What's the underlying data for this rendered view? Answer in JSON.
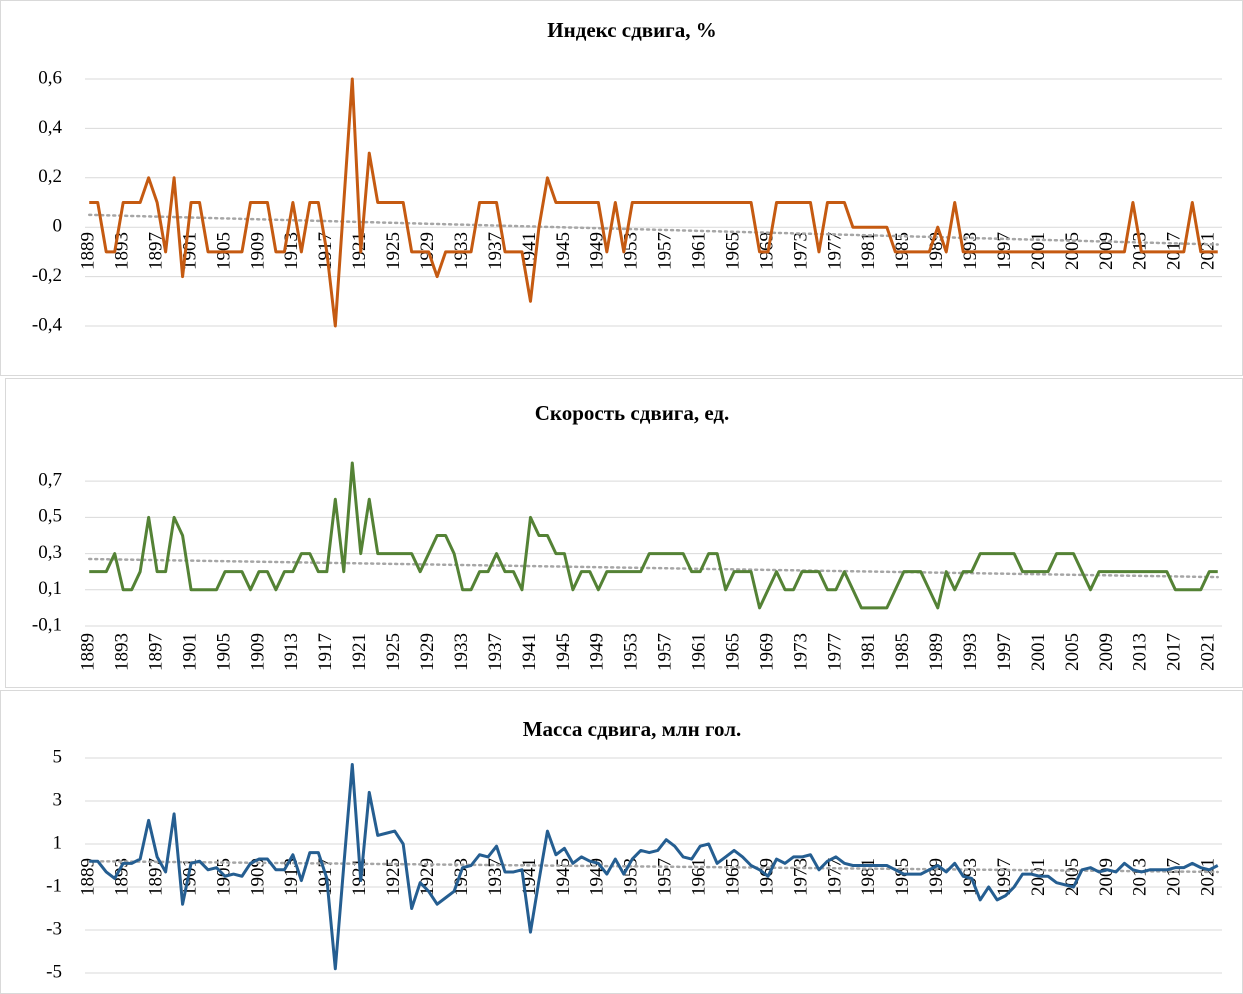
{
  "chart_data": [
    {
      "type": "line",
      "title": "Индекс сдвига, %",
      "color": "#c55a11",
      "x": [
        1889,
        1890,
        1891,
        1892,
        1893,
        1894,
        1895,
        1896,
        1897,
        1898,
        1899,
        1900,
        1901,
        1902,
        1903,
        1904,
        1905,
        1906,
        1907,
        1908,
        1909,
        1910,
        1911,
        1912,
        1913,
        1914,
        1915,
        1916,
        1917,
        1918,
        1919,
        1920,
        1921,
        1922,
        1923,
        1924,
        1925,
        1926,
        1927,
        1928,
        1929,
        1930,
        1931,
        1932,
        1933,
        1934,
        1935,
        1936,
        1937,
        1938,
        1939,
        1940,
        1941,
        1942,
        1943,
        1944,
        1945,
        1946,
        1947,
        1948,
        1949,
        1950,
        1951,
        1952,
        1953,
        1954,
        1955,
        1956,
        1957,
        1958,
        1959,
        1960,
        1961,
        1962,
        1963,
        1964,
        1965,
        1966,
        1967,
        1968,
        1969,
        1970,
        1971,
        1972,
        1973,
        1974,
        1975,
        1976,
        1977,
        1978,
        1979,
        1980,
        1981,
        1982,
        1983,
        1984,
        1985,
        1986,
        1987,
        1988,
        1989,
        1990,
        1991,
        1992,
        1993,
        1994,
        1995,
        1996,
        1997,
        1998,
        1999,
        2000,
        2001,
        2002,
        2003,
        2004,
        2005,
        2006,
        2007,
        2008,
        2009,
        2010,
        2011,
        2012,
        2013,
        2014,
        2015,
        2016,
        2017,
        2018,
        2019,
        2020,
        2021,
        2022
      ],
      "values": [
        0.1,
        0.1,
        -0.1,
        -0.1,
        0.1,
        0.1,
        0.1,
        0.2,
        0.1,
        -0.1,
        0.2,
        -0.2,
        0.1,
        0.1,
        -0.1,
        -0.1,
        -0.1,
        -0.1,
        -0.1,
        0.1,
        0.1,
        0.1,
        -0.1,
        -0.1,
        0.1,
        -0.1,
        0.1,
        0.1,
        -0.1,
        -0.4,
        0.1,
        0.6,
        -0.1,
        0.3,
        0.1,
        0.1,
        0.1,
        0.1,
        -0.1,
        -0.1,
        -0.1,
        -0.2,
        -0.1,
        -0.1,
        -0.1,
        -0.1,
        0.1,
        0.1,
        0.1,
        -0.1,
        -0.1,
        -0.1,
        -0.3,
        0,
        0.2,
        0.1,
        0.1,
        0.1,
        0.1,
        0.1,
        0.1,
        -0.1,
        0.1,
        -0.1,
        0.1,
        0.1,
        0.1,
        0.1,
        0.1,
        0.1,
        0.1,
        0.1,
        0.1,
        0.1,
        0.1,
        0.1,
        0.1,
        0.1,
        0.1,
        -0.1,
        -0.1,
        0.1,
        0.1,
        0.1,
        0.1,
        0.1,
        -0.1,
        0.1,
        0.1,
        0.1,
        0,
        0,
        0,
        0,
        0,
        -0.1,
        -0.1,
        -0.1,
        -0.1,
        -0.1,
        0,
        -0.1,
        0.1,
        -0.1,
        -0.1,
        -0.1,
        -0.1,
        -0.1,
        -0.1,
        -0.1,
        -0.1,
        -0.1,
        -0.1,
        -0.1,
        -0.1,
        -0.1,
        -0.1,
        -0.1,
        -0.1,
        -0.1,
        -0.1,
        -0.1,
        -0.1,
        0.1,
        -0.1,
        -0.1,
        -0.1,
        -0.1,
        -0.1,
        -0.1,
        0.1,
        -0.1,
        -0.1,
        -0.1
      ],
      "trend": {
        "color": "#a6a6a6",
        "values": [
          0.05,
          -0.07
        ]
      },
      "xlim": [
        1888.5,
        2022.5
      ],
      "xticks": [
        1889,
        1893,
        1897,
        1901,
        1905,
        1909,
        1913,
        1917,
        1921,
        1925,
        1929,
        1933,
        1937,
        1941,
        1945,
        1949,
        1953,
        1957,
        1961,
        1965,
        1969,
        1973,
        1977,
        1981,
        1985,
        1989,
        1993,
        1997,
        2001,
        2005,
        2009,
        2013,
        2017,
        2021
      ],
      "ylim": [
        -0.4,
        0.6
      ],
      "yticks": [
        {
          "value": -0.4,
          "label": "-0,4"
        },
        {
          "value": -0.2,
          "label": "-0,2"
        },
        0,
        {
          "value": 0.2,
          "label": "0,2"
        },
        {
          "value": 0.4,
          "label": "0,4"
        },
        {
          "value": 0.6,
          "label": "0,6"
        }
      ],
      "grid": true
    },
    {
      "type": "line",
      "title": "Скорость сдвига, ед.",
      "color": "#548235",
      "x": [
        1889,
        1890,
        1891,
        1892,
        1893,
        1894,
        1895,
        1896,
        1897,
        1898,
        1899,
        1900,
        1901,
        1902,
        1903,
        1904,
        1905,
        1906,
        1907,
        1908,
        1909,
        1910,
        1911,
        1912,
        1913,
        1914,
        1915,
        1916,
        1917,
        1918,
        1919,
        1920,
        1921,
        1922,
        1923,
        1924,
        1925,
        1926,
        1927,
        1928,
        1929,
        1930,
        1931,
        1932,
        1933,
        1934,
        1935,
        1936,
        1937,
        1938,
        1939,
        1940,
        1941,
        1942,
        1943,
        1944,
        1945,
        1946,
        1947,
        1948,
        1949,
        1950,
        1951,
        1952,
        1953,
        1954,
        1955,
        1956,
        1957,
        1958,
        1959,
        1960,
        1961,
        1962,
        1963,
        1964,
        1965,
        1966,
        1967,
        1968,
        1969,
        1970,
        1971,
        1972,
        1973,
        1974,
        1975,
        1976,
        1977,
        1978,
        1979,
        1980,
        1981,
        1982,
        1983,
        1984,
        1985,
        1986,
        1987,
        1988,
        1989,
        1990,
        1991,
        1992,
        1993,
        1994,
        1995,
        1996,
        1997,
        1998,
        1999,
        2000,
        2001,
        2002,
        2003,
        2004,
        2005,
        2006,
        2007,
        2008,
        2009,
        2010,
        2011,
        2012,
        2013,
        2014,
        2015,
        2016,
        2017,
        2018,
        2019,
        2020,
        2021,
        2022
      ],
      "values": [
        0.2,
        0.2,
        0.2,
        0.3,
        0.1,
        0.1,
        0.2,
        0.5,
        0.2,
        0.2,
        0.5,
        0.4,
        0.1,
        0.1,
        0.1,
        0.1,
        0.2,
        0.2,
        0.2,
        0.1,
        0.2,
        0.2,
        0.1,
        0.2,
        0.2,
        0.3,
        0.3,
        0.2,
        0.2,
        0.6,
        0.2,
        0.8,
        0.3,
        0.6,
        0.3,
        0.3,
        0.3,
        0.3,
        0.3,
        0.2,
        0.3,
        0.4,
        0.4,
        0.3,
        0.1,
        0.1,
        0.2,
        0.2,
        0.3,
        0.2,
        0.2,
        0.1,
        0.5,
        0.4,
        0.4,
        0.3,
        0.3,
        0.1,
        0.2,
        0.2,
        0.1,
        0.2,
        0.2,
        0.2,
        0.2,
        0.2,
        0.3,
        0.3,
        0.3,
        0.3,
        0.3,
        0.2,
        0.2,
        0.3,
        0.3,
        0.1,
        0.2,
        0.2,
        0.2,
        0,
        0.1,
        0.2,
        0.1,
        0.1,
        0.2,
        0.2,
        0.2,
        0.1,
        0.1,
        0.2,
        0.1,
        0,
        0,
        0,
        0,
        0.1,
        0.2,
        0.2,
        0.2,
        0.1,
        0,
        0.2,
        0.1,
        0.2,
        0.2,
        0.3,
        0.3,
        0.3,
        0.3,
        0.3,
        0.2,
        0.2,
        0.2,
        0.2,
        0.3,
        0.3,
        0.3,
        0.2,
        0.1,
        0.2,
        0.2,
        0.2,
        0.2,
        0.2,
        0.2,
        0.2,
        0.2,
        0.2,
        0.1,
        0.1,
        0.1,
        0.1,
        0.2,
        0.2
      ],
      "trend": {
        "color": "#a6a6a6",
        "values": [
          0.27,
          0.17
        ]
      },
      "xlim": [
        1888.5,
        2022.5
      ],
      "xticks": [
        1889,
        1893,
        1897,
        1901,
        1905,
        1909,
        1913,
        1917,
        1921,
        1925,
        1929,
        1933,
        1937,
        1941,
        1945,
        1949,
        1953,
        1957,
        1961,
        1965,
        1969,
        1973,
        1977,
        1981,
        1985,
        1989,
        1993,
        1997,
        2001,
        2005,
        2009,
        2013,
        2017,
        2021
      ],
      "ylim": [
        -0.1,
        0.85
      ],
      "yticks": [
        {
          "value": -0.1,
          "label": "-0,1"
        },
        {
          "value": 0.1,
          "label": "0,1"
        },
        {
          "value": 0.3,
          "label": "0,3"
        },
        {
          "value": 0.5,
          "label": "0,5"
        },
        {
          "value": 0.7,
          "label": "0,7"
        }
      ],
      "grid": true
    },
    {
      "type": "line",
      "title": "Масса сдвига, млн гол.",
      "color": "#255e91",
      "x": [
        1889,
        1890,
        1891,
        1892,
        1893,
        1894,
        1895,
        1896,
        1897,
        1898,
        1899,
        1900,
        1901,
        1902,
        1903,
        1904,
        1905,
        1906,
        1907,
        1908,
        1909,
        1910,
        1911,
        1912,
        1913,
        1914,
        1915,
        1916,
        1917,
        1918,
        1919,
        1920,
        1921,
        1922,
        1923,
        1924,
        1925,
        1926,
        1927,
        1928,
        1929,
        1930,
        1931,
        1932,
        1933,
        1934,
        1935,
        1936,
        1937,
        1938,
        1939,
        1940,
        1941,
        1942,
        1943,
        1944,
        1945,
        1946,
        1947,
        1948,
        1949,
        1950,
        1951,
        1952,
        1953,
        1954,
        1955,
        1956,
        1957,
        1958,
        1959,
        1960,
        1961,
        1962,
        1963,
        1964,
        1965,
        1966,
        1967,
        1968,
        1969,
        1970,
        1971,
        1972,
        1973,
        1974,
        1975,
        1976,
        1977,
        1978,
        1979,
        1980,
        1981,
        1982,
        1983,
        1984,
        1985,
        1986,
        1987,
        1988,
        1989,
        1990,
        1991,
        1992,
        1993,
        1994,
        1995,
        1996,
        1997,
        1998,
        1999,
        2000,
        2001,
        2002,
        2003,
        2004,
        2005,
        2006,
        2007,
        2008,
        2009,
        2010,
        2011,
        2012,
        2013,
        2014,
        2015,
        2016,
        2017,
        2018,
        2019,
        2020,
        2021,
        2022
      ],
      "values": [
        0.2,
        0.2,
        -0.3,
        -0.6,
        0.1,
        0.1,
        0.3,
        2.1,
        0.4,
        -0.3,
        2.4,
        -1.8,
        0.1,
        0.2,
        -0.2,
        -0.1,
        -0.5,
        -0.4,
        -0.5,
        0.1,
        0.3,
        0.3,
        -0.2,
        -0.2,
        0.5,
        -0.7,
        0.6,
        0.6,
        -0.6,
        -4.8,
        0,
        4.7,
        -0.7,
        3.4,
        1.4,
        1.5,
        1.6,
        1.0,
        -2.0,
        -0.8,
        -1.2,
        -1.8,
        -1.5,
        -1.2,
        -0.1,
        0,
        0.5,
        0.4,
        0.9,
        -0.3,
        -0.3,
        -0.2,
        -3.1,
        -0.7,
        1.6,
        0.5,
        0.8,
        0.1,
        0.4,
        0.2,
        0.1,
        -0.4,
        0.3,
        -0.4,
        0.3,
        0.7,
        0.6,
        0.7,
        1.2,
        0.9,
        0.4,
        0.3,
        0.9,
        1.0,
        0.1,
        0.4,
        0.7,
        0.4,
        0,
        -0.2,
        -0.5,
        0.3,
        0.1,
        0.4,
        0.4,
        0.5,
        -0.2,
        0.2,
        0.4,
        0.1,
        0,
        0,
        0,
        0,
        0,
        -0.2,
        -0.4,
        -0.4,
        -0.4,
        -0.2,
        0,
        -0.3,
        0.1,
        -0.5,
        -0.6,
        -1.6,
        -1.0,
        -1.6,
        -1.4,
        -1.0,
        -0.4,
        -0.4,
        -0.5,
        -0.5,
        -0.8,
        -0.9,
        -1.0,
        -0.2,
        -0.1,
        -0.3,
        -0.2,
        -0.3,
        0.1,
        -0.2,
        -0.3,
        -0.2,
        -0.2,
        -0.2,
        -0.1,
        -0.1,
        0.1,
        -0.1,
        -0.2,
        0
      ],
      "trend": {
        "color": "#a6a6a6",
        "values": [
          0.2,
          -0.3
        ]
      },
      "xlim": [
        1888.5,
        2022.5
      ],
      "xticks": [
        1889,
        1893,
        1897,
        1901,
        1905,
        1909,
        1913,
        1917,
        1921,
        1925,
        1929,
        1933,
        1937,
        1941,
        1945,
        1949,
        1953,
        1957,
        1961,
        1965,
        1969,
        1973,
        1977,
        1981,
        1985,
        1989,
        1993,
        1997,
        2001,
        2005,
        2009,
        2013,
        2017,
        2021
      ],
      "ylim": [
        -5,
        5
      ],
      "yticks": [
        -5,
        -3,
        -1,
        1,
        3,
        5
      ],
      "grid": true
    }
  ]
}
